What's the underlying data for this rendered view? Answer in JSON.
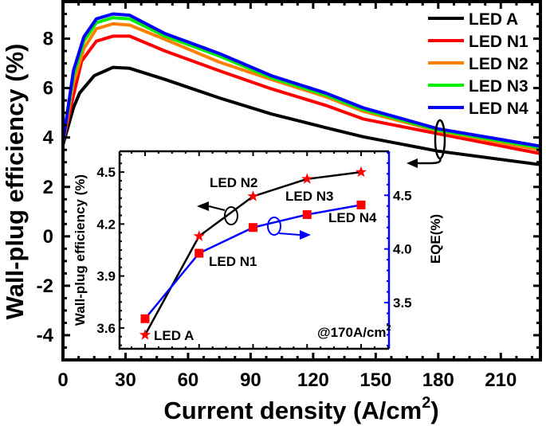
{
  "chart_data": [
    {
      "type": "line",
      "xlabel": "Current density (A/cm",
      "xlabel_sup": "2",
      "xlabel_end": ")",
      "ylabel": "Wall-plug efficiency (%)",
      "xlim": [
        0,
        229
      ],
      "ylim": [
        -5,
        9.5
      ],
      "xticks": [
        0,
        30,
        60,
        90,
        120,
        150,
        180,
        210
      ],
      "yticks": [
        -4,
        -2,
        0,
        2,
        4,
        6,
        8
      ],
      "grid": false,
      "legend": "top-right",
      "series": [
        {
          "name": "LED A",
          "color": "#000000",
          "x": [
            0,
            5,
            8,
            15,
            24,
            32,
            49,
            75,
            100,
            126,
            144,
            180,
            229
          ],
          "y": [
            3.7,
            5.2,
            5.8,
            6.5,
            6.84,
            6.8,
            6.35,
            5.6,
            4.95,
            4.4,
            4.03,
            3.45,
            2.9
          ]
        },
        {
          "name": "LED N1",
          "color": "#ff0000",
          "x": [
            0,
            5,
            9,
            16,
            24,
            32,
            49,
            75,
            100,
            126,
            144,
            180,
            229
          ],
          "y": [
            3.8,
            5.7,
            7.1,
            7.9,
            8.1,
            8.1,
            7.5,
            6.7,
            5.97,
            5.3,
            4.75,
            4.15,
            3.35
          ]
        },
        {
          "name": "LED N2",
          "color": "#ff8000",
          "x": [
            0,
            5,
            10,
            16,
            24,
            32,
            49,
            75,
            100,
            126,
            144,
            180,
            229
          ],
          "y": [
            3.8,
            6.2,
            7.6,
            8.4,
            8.6,
            8.55,
            7.97,
            7.05,
            6.35,
            5.65,
            5.06,
            4.26,
            3.5
          ]
        },
        {
          "name": "LED N3",
          "color": "#00ee00",
          "x": [
            0,
            5,
            10,
            16,
            24,
            32,
            49,
            75,
            100,
            126,
            144,
            180,
            229
          ],
          "y": [
            3.8,
            6.5,
            7.9,
            8.65,
            8.85,
            8.8,
            8.1,
            7.3,
            6.42,
            5.72,
            5.13,
            4.3,
            3.58
          ]
        },
        {
          "name": "LED N4",
          "color": "#0000ff",
          "x": [
            0,
            5,
            10,
            16,
            24,
            32,
            49,
            75,
            100,
            126,
            144,
            180,
            229
          ],
          "y": [
            3.8,
            6.7,
            8.07,
            8.8,
            9.0,
            8.95,
            8.2,
            7.4,
            6.5,
            5.8,
            5.2,
            4.35,
            3.65
          ]
        }
      ]
    },
    {
      "type": "line",
      "inset": true,
      "ylabel": "Wall-plug efficiency (%)",
      "y2label": "EQE(%)",
      "annotation": "@170A/cm",
      "annotation_sup": "2",
      "categories": [
        "LED A",
        "LED N1",
        "LED N2",
        "LED N3",
        "LED N4"
      ],
      "ylim": [
        3.48,
        4.62
      ],
      "y2lim": [
        3.07,
        4.91
      ],
      "yticks": [
        3.6,
        3.9,
        4.2,
        4.5
      ],
      "y2ticks": [
        3.5,
        4.0,
        4.5
      ],
      "series": [
        {
          "axis": "left",
          "marker": "star",
          "color": "#000000",
          "marker_color": "#ff0000",
          "values": [
            3.56,
            4.13,
            4.36,
            4.46,
            4.5
          ]
        },
        {
          "axis": "right",
          "marker": "square",
          "color": "#0000ff",
          "marker_color": "#ff0000",
          "values": [
            3.35,
            3.96,
            4.2,
            4.32,
            4.41
          ]
        }
      ]
    }
  ]
}
